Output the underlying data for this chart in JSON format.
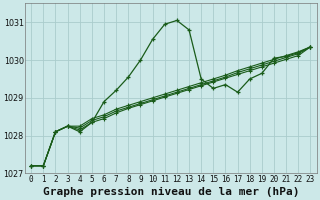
{
  "background_color": "#cce8e8",
  "grid_color": "#aacccc",
  "line_color": "#1a5c1a",
  "ylim": [
    1027.0,
    1031.5
  ],
  "yticks": [
    1027,
    1028,
    1029,
    1030,
    1031
  ],
  "xlim": [
    -0.5,
    23.5
  ],
  "xticks": [
    0,
    1,
    2,
    3,
    4,
    5,
    6,
    7,
    8,
    9,
    10,
    11,
    12,
    13,
    14,
    15,
    16,
    17,
    18,
    19,
    20,
    21,
    22,
    23
  ],
  "title": "Graphe pression niveau de la mer (hPa)",
  "series1": [
    1027.2,
    1027.2,
    1028.1,
    1028.25,
    1028.1,
    1028.35,
    1028.9,
    1029.2,
    1029.55,
    1030.0,
    1030.55,
    1030.95,
    1031.05,
    1030.8,
    1029.5,
    1029.25,
    1029.35,
    1029.15,
    1029.5,
    1029.65,
    1030.05,
    1030.1,
    1030.2,
    1030.35
  ],
  "series2": [
    1027.2,
    1027.2,
    1028.1,
    1028.25,
    1028.25,
    1028.45,
    1028.55,
    1028.7,
    1028.8,
    1028.9,
    1029.0,
    1029.1,
    1029.2,
    1029.3,
    1029.4,
    1029.5,
    1029.6,
    1029.72,
    1029.82,
    1029.92,
    1030.02,
    1030.12,
    1030.22,
    1030.35
  ],
  "series3": [
    1027.2,
    1027.2,
    1028.1,
    1028.25,
    1028.2,
    1028.4,
    1028.5,
    1028.65,
    1028.75,
    1028.85,
    1028.95,
    1029.05,
    1029.15,
    1029.25,
    1029.35,
    1029.45,
    1029.55,
    1029.67,
    1029.77,
    1029.87,
    1029.97,
    1030.07,
    1030.17,
    1030.35
  ],
  "series4": [
    1027.2,
    1027.2,
    1028.1,
    1028.25,
    1028.15,
    1028.35,
    1028.45,
    1028.6,
    1028.72,
    1028.82,
    1028.92,
    1029.02,
    1029.12,
    1029.22,
    1029.32,
    1029.42,
    1029.52,
    1029.62,
    1029.72,
    1029.82,
    1029.92,
    1030.02,
    1030.12,
    1030.35
  ],
  "title_fontsize": 8,
  "tick_fontsize": 5.5
}
